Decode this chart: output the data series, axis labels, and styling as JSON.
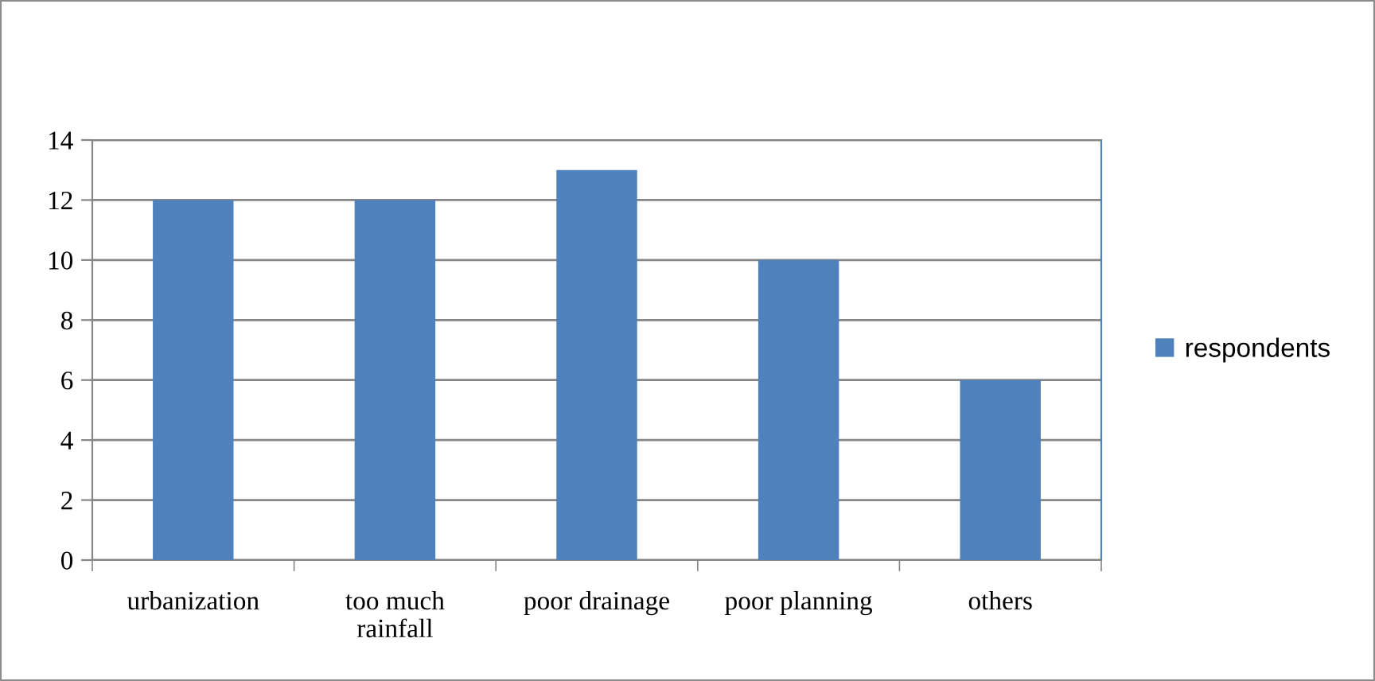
{
  "chart_data": {
    "type": "bar",
    "categories": [
      "urbanization",
      "too much\nrainfall",
      "poor drainage",
      "poor planning",
      "others"
    ],
    "series": [
      {
        "name": "respondents",
        "color": "#4f81bd",
        "values": [
          12,
          12,
          13,
          10,
          6
        ]
      }
    ],
    "ylim": [
      0,
      14
    ],
    "yticks": [
      0,
      2,
      4,
      6,
      8,
      10,
      12,
      14
    ],
    "grid": "y",
    "legend": "right"
  }
}
